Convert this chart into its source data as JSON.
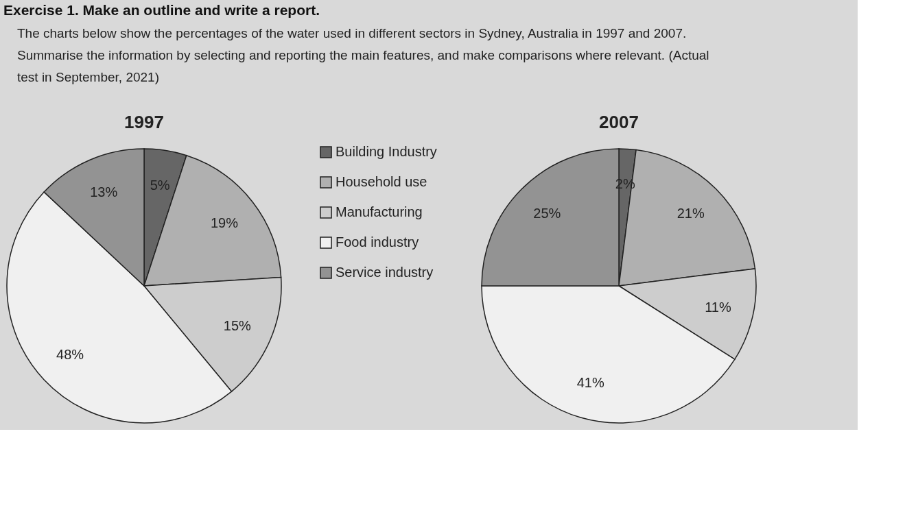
{
  "chart_data": [
    {
      "type": "other",
      "title": "Exercise 1. Make an outline and write a report.",
      "annotations": [
        "The charts below show the percentages of the water used in different sectors in Sydney, Australia in 1997 and 2007.",
        "Summarise the information by selecting and reporting the main features, and make comparisons where relevant. (Actual test in September, 2021)"
      ]
    },
    {
      "type": "pie",
      "title": "1997",
      "categories": [
        "Building Industry",
        "Household use",
        "Manufacturing",
        "Food industry",
        "Service industry"
      ],
      "values": [
        5,
        19,
        15,
        48,
        13
      ],
      "value_labels": [
        "5%",
        "19%",
        "15%",
        "48%",
        "13%"
      ],
      "colors": [
        "#666666",
        "#b0b0b0",
        "#cdcdcd",
        "#f0f0f0",
        "#939393"
      ],
      "legend": "right"
    },
    {
      "type": "pie",
      "title": "2007",
      "categories": [
        null,
        null,
        null,
        null,
        null
      ],
      "values": [
        2,
        21,
        11,
        41,
        25
      ],
      "value_labels": [
        "2%",
        "21%",
        "11%",
        "41%",
        "25%"
      ],
      "colors": [
        "#666666",
        "#b0b0b0",
        "#cdcdcd",
        "#f0f0f0",
        "#939393"
      ]
    }
  ]
}
